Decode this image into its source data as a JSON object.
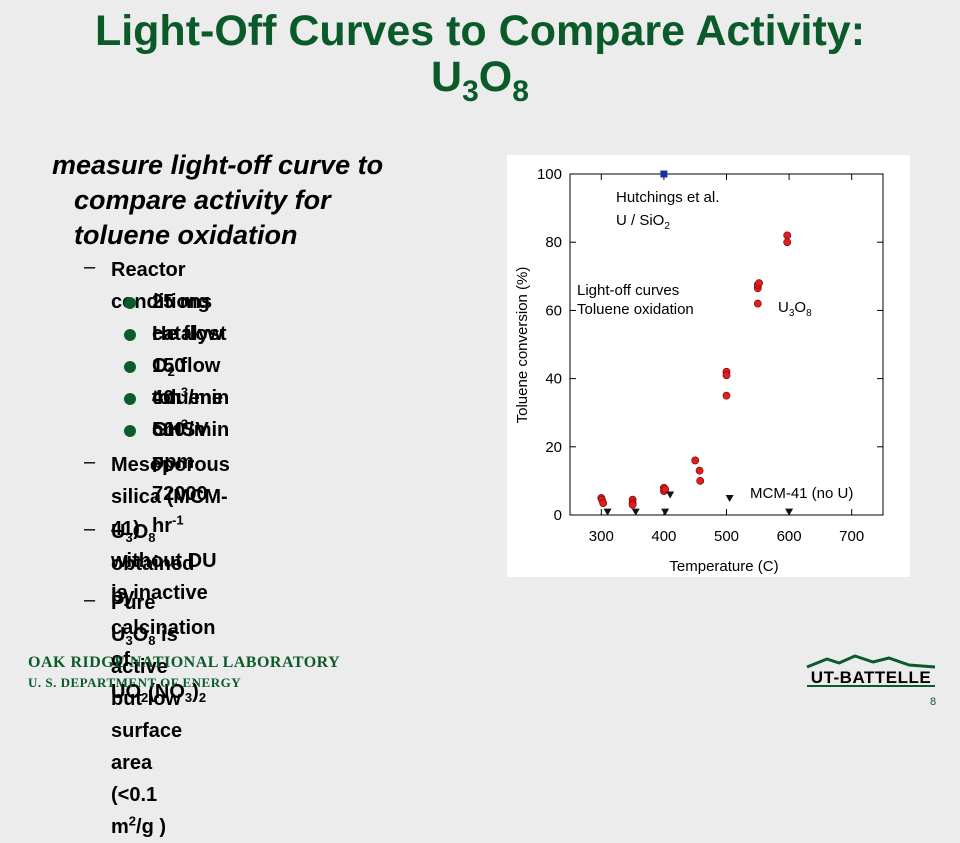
{
  "slide": {
    "title_line1": "Light-Off Curves  to Compare Activity:",
    "title_u": "U",
    "title_3": "3",
    "title_o": "O",
    "title_8": "8",
    "page_number": "8"
  },
  "bullets": {
    "main_line1": "measure light-off curve to",
    "main_line2": "compare activity for",
    "main_line3": "toluene oxidation",
    "reactor": "Reactor conditions",
    "catalyst": "25 mg catalyst",
    "he_flow_a": "He flow 150 cm",
    "he_flow_sup": "3",
    "he_flow_b": "/min",
    "o2_a": "O",
    "o2_sub": "2",
    "o2_b": " flow 40 cm",
    "o2_sup": "3",
    "o2_c": "/min",
    "toluene": "toluene 500 ppm",
    "ghsv_a": "GHSV = 72000 hr",
    "ghsv_sup": "-1",
    "meso_line1": "Mesoporous silica (MCM-41)",
    "meso_line2": "without DU is inactive",
    "calc_u": "U",
    "calc_3": "3",
    "calc_o": "O",
    "calc_8": "8",
    "calc_b": " obtained by calcination of",
    "calc2_a": "UO",
    "calc2_2": "2",
    "calc2_b": "(NO",
    "calc2_3": "3",
    "calc2_c": ")",
    "calc2_d": "2",
    "pure_a": "Pure U",
    "pure_3": "3",
    "pure_o": "O",
    "pure_8": "8",
    "pure_b": " is active but low",
    "surface_a": "surface area (<0.1 m",
    "surface_sup": "2",
    "surface_b": "/g )"
  },
  "footer": {
    "lab": "OAK RIDGE NATIONAL LABORATORY",
    "dept": "U. S. DEPARTMENT OF ENERGY",
    "logo": "UT-BATTELLE"
  },
  "chart_data": {
    "type": "scatter",
    "xlabel": "Temperature (C)",
    "ylabel": "Toluene conversion  (%)",
    "xlim": [
      250,
      750
    ],
    "ylim": [
      0,
      100
    ],
    "xticks": [
      300,
      400,
      500,
      600,
      700
    ],
    "yticks": [
      0,
      20,
      40,
      60,
      80,
      100
    ],
    "grid": false,
    "colors": {
      "u3o8": "#dd1f1f",
      "hutchings": "#1a2fa0",
      "mcm41": "#111111"
    },
    "annotations": {
      "hutchings_line1": "Hutchings et al.",
      "hutchings_line2": "U / SiO",
      "hutchings_sub": "2",
      "lightoff_line1": "Light-off curves",
      "lightoff_line2": "Toluene oxidation",
      "u3o8_u": "U",
      "u3o8_3": "3",
      "u3o8_o": "O",
      "u3o8_8": "8",
      "mcm41": "MCM-41 (no U)"
    },
    "series": [
      {
        "marker": "circle",
        "x": [
          300,
          301,
          303,
          350,
          350,
          350,
          400,
          400,
          402,
          450,
          457,
          458,
          500,
          500,
          500,
          550,
          550,
          550,
          552,
          597,
          597
        ],
        "y": [
          5,
          4.5,
          3.5,
          4.5,
          3.5,
          3,
          8,
          7,
          7.5,
          16,
          13,
          10,
          42,
          41,
          35,
          66.5,
          67.5,
          62,
          68,
          82,
          80
        ]
      },
      {
        "marker": "square",
        "x": [
          400
        ],
        "y": [
          100
        ]
      },
      {
        "marker": "triangle-down",
        "x": [
          310,
          355,
          402,
          410,
          505,
          600
        ],
        "y": [
          1,
          1,
          1,
          6,
          5,
          1
        ]
      }
    ]
  }
}
